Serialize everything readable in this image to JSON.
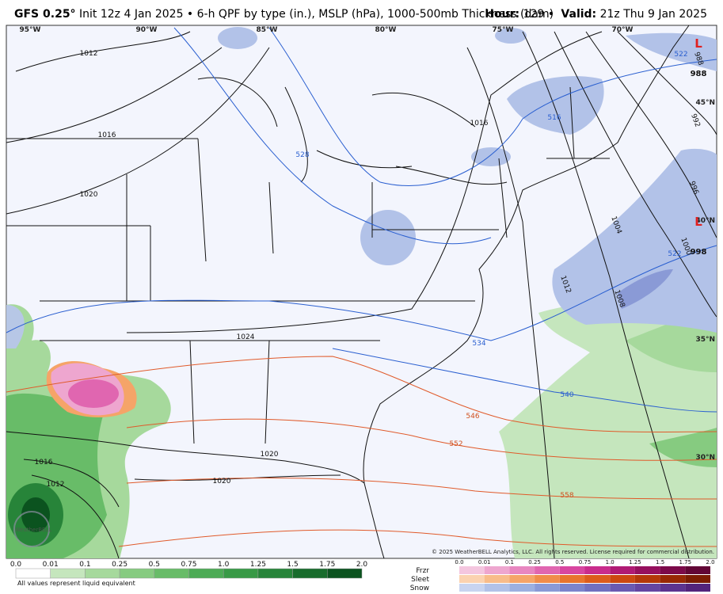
{
  "header": {
    "model": "GFS 0.25°",
    "description": "Init 12z 4 Jan 2025 • 6-h QPF by type (in.), MSLP (hPa), 1000-500mb Thickness (dam)",
    "hour_label": "Hour:",
    "hour": "129 •",
    "valid_label": "Valid:",
    "valid": "21z Thu 9 Jan 2025"
  },
  "map": {
    "longitudes": [
      "95°W",
      "90°W",
      "85°W",
      "80°W",
      "75°W",
      "70°W"
    ],
    "latitudes": [
      "45°N",
      "40°N",
      "35°N",
      "30°N"
    ],
    "isobars": [
      "1012",
      "1016",
      "1020",
      "1024",
      "1020",
      "1020",
      "1016",
      "1012",
      "1016",
      "1012",
      "1008",
      "1004",
      "1000",
      "996",
      "992",
      "988"
    ],
    "thickness": [
      "528",
      "516",
      "522",
      "522",
      "534",
      "540",
      "546",
      "552",
      "558"
    ],
    "lows": [
      {
        "symbol": "L",
        "pressure": "988"
      },
      {
        "symbol": "L",
        "pressure": "998"
      }
    ],
    "watermark": "WeatherBELL",
    "copyright": "© 2025 WeatherBELL Analytics, LLC. All rights reserved. License required for commercial distribution."
  },
  "legend": {
    "rain": {
      "ticks": [
        "0.0",
        "0.01",
        "0.1",
        "0.25",
        "0.5",
        "0.75",
        "1.0",
        "1.25",
        "1.5",
        "1.75",
        "2.0"
      ],
      "colors": [
        "#ffffff",
        "#c5e6bd",
        "#a6d99c",
        "#86cb80",
        "#68bc68",
        "#4cab55",
        "#389a46",
        "#278439",
        "#186c2c",
        "#0b531f"
      ],
      "note": "All values represent liquid equivalent"
    },
    "winter": {
      "types": [
        "Frzr",
        "Sleet",
        "Snow"
      ],
      "ticks": [
        "0.0",
        "0.01",
        "0.1",
        "0.25",
        "0.5",
        "0.75",
        "1.0",
        "1.25",
        "1.5",
        "1.75",
        "2.0"
      ],
      "colors": [
        [
          "#f4c6df",
          "#eea6cf",
          "#e886c0",
          "#e066b0",
          "#d846a0",
          "#c92c8c",
          "#b01a74",
          "#96105e",
          "#7c0a4a",
          "#620636"
        ],
        [
          "#fbd2b0",
          "#f8bc8a",
          "#f5a468",
          "#f08c4a",
          "#e8742e",
          "#dc5c1c",
          "#cc4810",
          "#b43808",
          "#982804",
          "#7c1c02"
        ],
        [
          "#c8d4f0",
          "#b2c2e8",
          "#9cb0e0",
          "#8a9ad6",
          "#7c84cc",
          "#7070c0",
          "#6a5ab2",
          "#6446a2",
          "#5c3490",
          "#52247c"
        ]
      ]
    }
  }
}
